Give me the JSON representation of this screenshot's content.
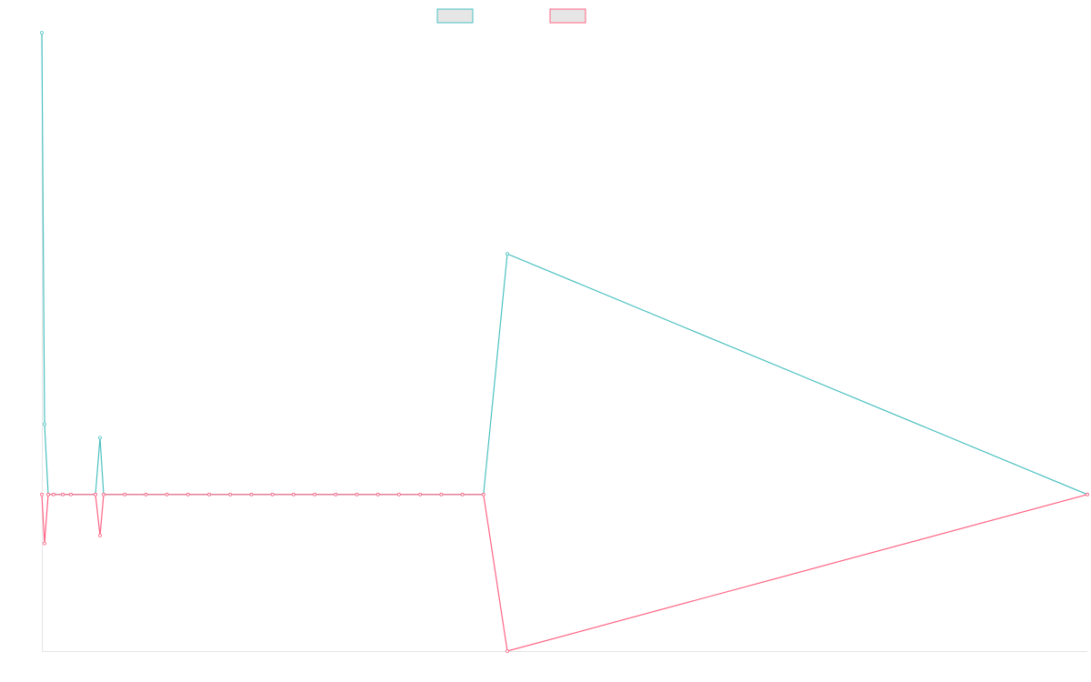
{
  "chart_data": {
    "type": "line",
    "title": "",
    "xlabel": "",
    "ylabel": "",
    "grid": false,
    "legend_position": "top-center",
    "x_tick_labels_visible": false,
    "y_tick_labels_visible": false,
    "point_count": 29,
    "series": [
      {
        "legend_label": "",
        "color": "#4BC0C0",
        "legend_fill": "#E6E6E6",
        "values": [
          1180,
          180,
          0,
          0,
          0,
          0,
          0,
          145,
          0,
          0,
          0,
          0,
          0,
          0,
          0,
          0,
          0,
          0,
          0,
          0,
          0,
          0,
          0,
          0,
          0,
          0,
          0,
          615,
          0
        ],
        "x_last": 0
      },
      {
        "legend_label": "",
        "color": "#FF6384",
        "legend_fill": "#E6E6E6",
        "values": [
          0,
          -125,
          0,
          0,
          0,
          0,
          0,
          -105,
          0,
          0,
          0,
          0,
          0,
          0,
          0,
          0,
          0,
          0,
          0,
          0,
          0,
          0,
          0,
          0,
          0,
          0,
          0,
          -400,
          0
        ],
        "x_last": 0
      }
    ],
    "ylim": [
      -400,
      1180
    ]
  }
}
